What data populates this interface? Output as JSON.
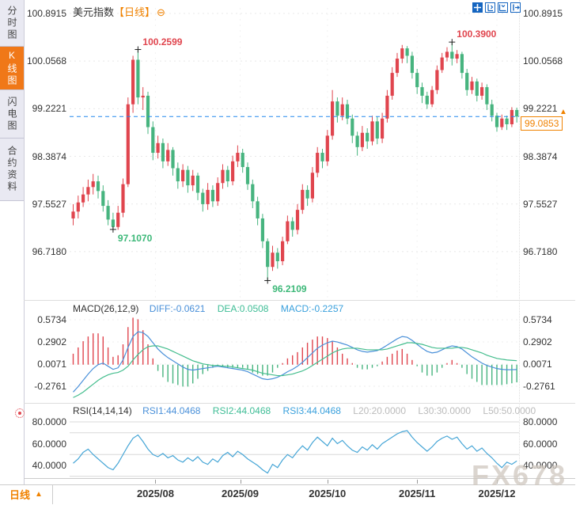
{
  "header": {
    "symbol": "美元指数",
    "period_tag": "【日线】",
    "collapse_icon": "⊖"
  },
  "sidebar": {
    "items": [
      {
        "label": "分时图",
        "name": "timeshare-chart",
        "active": false
      },
      {
        "label": "K线图",
        "name": "kline-chart",
        "active": true
      },
      {
        "label": "闪电图",
        "name": "lightning-chart",
        "active": false
      },
      {
        "label": "合约资料",
        "name": "contract-info",
        "active": false
      }
    ]
  },
  "toolbar_icons": [
    "crosshair",
    "scale-y-axis",
    "scale-x-axis",
    "exit-chart"
  ],
  "current_price": "99.0853",
  "watermark": "FX678",
  "bottom_bar": {
    "period_label": "日线",
    "arrow": "▲"
  },
  "macd_header": {
    "name": "MACD(26,12,9)",
    "diff": "DIFF:-0.0621",
    "dea": "DEA:0.0508",
    "macd": "MACD:-0.2257"
  },
  "rsi_header": {
    "name": "RSI(14,14,14)",
    "rsi1": "RSI1:44.0468",
    "rsi2": "RSI2:44.0468",
    "rsi3": "RSI3:44.0468",
    "l20": "L20:20.0000",
    "l30": "L30:30.0000",
    "l50": "L50:50.0000"
  },
  "colors": {
    "up": "#e0454e",
    "down": "#47b47f",
    "diff_line": "#4a90d9",
    "dea_line": "#43bd8d",
    "rsi_line": "#45a5d6",
    "accent_orange": "#f08200",
    "price_line": "#2288ee",
    "grid": "#e8e8e8",
    "rsi_grid": "#d8d8d8"
  },
  "chart_data": {
    "type": "candlestick",
    "symbol": "美元指数",
    "period": "日线",
    "main": {
      "axis_labels": [
        "100.8915",
        "100.0568",
        "99.2221",
        "98.3874",
        "97.5527",
        "96.7180"
      ],
      "current_price": 99.0853,
      "key_points": [
        {
          "index": 13,
          "value": 100.2599,
          "kind": "high",
          "label": "100.2599",
          "color": "red"
        },
        {
          "index": 76,
          "value": 100.39,
          "kind": "high",
          "label": "100.3900",
          "color": "red"
        },
        {
          "index": 8,
          "value": 97.107,
          "kind": "low",
          "label": "97.1070",
          "color": "green"
        },
        {
          "index": 39,
          "value": 96.2109,
          "kind": "low",
          "label": "96.2109",
          "color": "green"
        }
      ],
      "candles": [
        [
          97.3,
          97.55,
          97.18,
          97.42
        ],
        [
          97.42,
          97.7,
          97.3,
          97.58
        ],
        [
          97.58,
          97.85,
          97.5,
          97.72
        ],
        [
          97.72,
          97.98,
          97.6,
          97.85
        ],
        [
          97.85,
          98.08,
          97.72,
          97.95
        ],
        [
          97.95,
          98.05,
          97.65,
          97.78
        ],
        [
          97.78,
          97.88,
          97.42,
          97.52
        ],
        [
          97.52,
          97.62,
          97.18,
          97.28
        ],
        [
          97.28,
          97.4,
          97.107,
          97.15
        ],
        [
          97.15,
          97.52,
          97.1,
          97.4
        ],
        [
          97.4,
          98.0,
          97.32,
          97.9
        ],
        [
          97.9,
          99.42,
          97.85,
          99.3
        ],
        [
          99.3,
          100.15,
          99.15,
          100.08
        ],
        [
          100.08,
          100.2599,
          99.3,
          99.42
        ],
        [
          99.42,
          99.6,
          99.2,
          99.45
        ],
        [
          99.45,
          99.52,
          98.78,
          98.9
        ],
        [
          98.9,
          99.0,
          98.32,
          98.45
        ],
        [
          98.45,
          98.75,
          98.35,
          98.62
        ],
        [
          98.62,
          98.7,
          98.18,
          98.3
        ],
        [
          98.3,
          98.62,
          98.22,
          98.5
        ],
        [
          98.5,
          98.55,
          98.05,
          98.18
        ],
        [
          98.18,
          98.28,
          97.82,
          97.95
        ],
        [
          97.95,
          98.25,
          97.85,
          98.15
        ],
        [
          98.15,
          98.22,
          97.75,
          97.88
        ],
        [
          97.88,
          98.15,
          97.78,
          98.05
        ],
        [
          98.05,
          98.1,
          97.62,
          97.75
        ],
        [
          97.75,
          97.82,
          97.42,
          97.55
        ],
        [
          97.55,
          97.92,
          97.45,
          97.8
        ],
        [
          97.8,
          97.88,
          97.5,
          97.6
        ],
        [
          97.6,
          98.02,
          97.52,
          97.92
        ],
        [
          97.92,
          98.25,
          97.82,
          98.15
        ],
        [
          98.15,
          98.22,
          97.85,
          97.95
        ],
        [
          97.95,
          98.4,
          97.88,
          98.3
        ],
        [
          98.3,
          98.58,
          98.2,
          98.45
        ],
        [
          98.45,
          98.52,
          98.1,
          98.2
        ],
        [
          98.2,
          98.28,
          97.8,
          97.9
        ],
        [
          97.9,
          97.98,
          97.48,
          97.6
        ],
        [
          97.6,
          97.68,
          97.18,
          97.3
        ],
        [
          97.3,
          97.38,
          96.78,
          96.9
        ],
        [
          96.9,
          96.95,
          96.2109,
          96.45
        ],
        [
          96.45,
          96.82,
          96.38,
          96.7
        ],
        [
          96.7,
          96.78,
          96.42,
          96.55
        ],
        [
          96.55,
          96.98,
          96.48,
          96.9
        ],
        [
          96.9,
          97.35,
          96.85,
          97.25
        ],
        [
          97.25,
          97.32,
          96.98,
          97.1
        ],
        [
          97.1,
          97.55,
          97.02,
          97.45
        ],
        [
          97.45,
          97.9,
          97.38,
          97.8
        ],
        [
          97.8,
          97.88,
          97.52,
          97.65
        ],
        [
          97.65,
          98.2,
          97.58,
          98.1
        ],
        [
          98.1,
          98.55,
          98.02,
          98.45
        ],
        [
          98.45,
          98.52,
          98.18,
          98.3
        ],
        [
          98.3,
          98.85,
          98.22,
          98.75
        ],
        [
          98.75,
          99.55,
          98.68,
          99.35
        ],
        [
          99.35,
          99.42,
          98.98,
          99.1
        ],
        [
          99.1,
          99.42,
          99.02,
          99.3
        ],
        [
          99.3,
          99.38,
          98.95,
          99.05
        ],
        [
          99.05,
          99.12,
          98.62,
          98.75
        ],
        [
          98.75,
          98.82,
          98.4,
          98.55
        ],
        [
          98.55,
          98.92,
          98.48,
          98.8
        ],
        [
          98.8,
          98.88,
          98.52,
          98.65
        ],
        [
          98.65,
          99.1,
          98.58,
          99.0
        ],
        [
          99.0,
          99.08,
          98.6,
          98.7
        ],
        [
          98.7,
          99.15,
          98.62,
          99.05
        ],
        [
          99.05,
          99.55,
          98.98,
          99.45
        ],
        [
          99.45,
          99.95,
          99.38,
          99.85
        ],
        [
          99.85,
          100.2,
          99.78,
          100.1
        ],
        [
          100.1,
          100.34,
          100.02,
          100.28
        ],
        [
          100.28,
          100.32,
          100.02,
          100.15
        ],
        [
          100.15,
          100.22,
          99.75,
          99.85
        ],
        [
          99.85,
          99.92,
          99.48,
          99.6
        ],
        [
          99.6,
          99.68,
          99.32,
          99.45
        ],
        [
          99.45,
          99.52,
          99.22,
          99.3
        ],
        [
          99.3,
          99.62,
          99.25,
          99.55
        ],
        [
          99.55,
          99.98,
          99.48,
          99.9
        ],
        [
          99.9,
          100.2,
          99.85,
          100.12
        ],
        [
          100.12,
          100.3,
          100.05,
          100.22
        ],
        [
          100.22,
          100.39,
          99.98,
          100.1
        ],
        [
          100.1,
          100.25,
          100.02,
          100.18
        ],
        [
          100.18,
          100.22,
          99.75,
          99.85
        ],
        [
          99.85,
          99.92,
          99.45,
          99.55
        ],
        [
          99.55,
          99.78,
          99.48,
          99.7
        ],
        [
          99.7,
          99.75,
          99.35,
          99.45
        ],
        [
          99.45,
          99.68,
          99.38,
          99.6
        ],
        [
          99.6,
          99.65,
          99.2,
          99.3
        ],
        [
          99.3,
          99.38,
          99.0,
          99.1
        ],
        [
          99.1,
          99.15,
          98.82,
          98.9
        ],
        [
          98.9,
          99.12,
          98.85,
          99.05
        ],
        [
          99.05,
          99.1,
          98.85,
          98.95
        ],
        [
          98.95,
          99.25,
          98.9,
          99.2
        ],
        [
          99.2,
          99.24,
          98.98,
          99.0853
        ]
      ]
    },
    "macd": {
      "axis_labels": [
        "0.5734",
        "0.2902",
        "0.0071",
        "-0.2761"
      ],
      "bar_formula": "2*(diff-dea)",
      "diff": [
        -0.35,
        -0.28,
        -0.2,
        -0.12,
        -0.05,
        0.0,
        0.02,
        -0.02,
        -0.06,
        -0.04,
        0.06,
        0.22,
        0.36,
        0.42,
        0.41,
        0.36,
        0.28,
        0.2,
        0.14,
        0.09,
        0.05,
        0.01,
        -0.03,
        -0.06,
        -0.07,
        -0.06,
        -0.05,
        -0.04,
        -0.03,
        -0.02,
        -0.03,
        -0.04,
        -0.05,
        -0.06,
        -0.07,
        -0.09,
        -0.12,
        -0.15,
        -0.18,
        -0.19,
        -0.18,
        -0.16,
        -0.13,
        -0.09,
        -0.06,
        -0.02,
        0.03,
        0.09,
        0.15,
        0.21,
        0.25,
        0.28,
        0.3,
        0.29,
        0.27,
        0.25,
        0.22,
        0.19,
        0.17,
        0.16,
        0.17,
        0.18,
        0.21,
        0.25,
        0.29,
        0.33,
        0.36,
        0.35,
        0.31,
        0.26,
        0.21,
        0.17,
        0.15,
        0.16,
        0.19,
        0.22,
        0.24,
        0.23,
        0.2,
        0.15,
        0.1,
        0.06,
        0.02,
        -0.01,
        -0.03,
        -0.05,
        -0.06,
        -0.065,
        -0.064,
        -0.0621
      ],
      "dea": [
        -0.42,
        -0.39,
        -0.35,
        -0.3,
        -0.25,
        -0.2,
        -0.16,
        -0.13,
        -0.11,
        -0.1,
        -0.07,
        -0.02,
        0.06,
        0.13,
        0.19,
        0.23,
        0.24,
        0.24,
        0.22,
        0.2,
        0.17,
        0.14,
        0.11,
        0.08,
        0.05,
        0.03,
        0.01,
        0.0,
        -0.01,
        -0.01,
        -0.02,
        -0.02,
        -0.03,
        -0.04,
        -0.05,
        -0.06,
        -0.07,
        -0.09,
        -0.11,
        -0.12,
        -0.13,
        -0.14,
        -0.14,
        -0.13,
        -0.12,
        -0.1,
        -0.08,
        -0.05,
        -0.01,
        0.03,
        0.07,
        0.11,
        0.15,
        0.18,
        0.2,
        0.21,
        0.21,
        0.21,
        0.2,
        0.19,
        0.19,
        0.19,
        0.19,
        0.2,
        0.22,
        0.24,
        0.26,
        0.28,
        0.28,
        0.27,
        0.26,
        0.24,
        0.22,
        0.21,
        0.21,
        0.21,
        0.21,
        0.22,
        0.22,
        0.21,
        0.19,
        0.17,
        0.15,
        0.12,
        0.1,
        0.08,
        0.07,
        0.06,
        0.055,
        0.0508
      ]
    },
    "rsi": {
      "axis_labels": [
        "80.0000",
        "60.0000",
        "40.0000"
      ],
      "gridlines": [
        80,
        70,
        50,
        30
      ],
      "values": [
        42,
        46,
        52,
        55,
        50,
        46,
        42,
        38,
        36,
        42,
        50,
        58,
        65,
        68,
        62,
        55,
        50,
        48,
        51,
        47,
        49,
        45,
        43,
        47,
        44,
        48,
        43,
        41,
        46,
        43,
        49,
        52,
        48,
        53,
        50,
        46,
        43,
        40,
        36,
        33,
        41,
        38,
        45,
        50,
        47,
        53,
        58,
        54,
        61,
        66,
        62,
        58,
        65,
        60,
        63,
        58,
        54,
        52,
        57,
        54,
        59,
        55,
        60,
        63,
        66,
        69,
        71,
        72,
        66,
        61,
        57,
        53,
        57,
        62,
        65,
        67,
        64,
        66,
        60,
        55,
        58,
        53,
        56,
        51,
        47,
        42,
        38,
        43,
        41,
        44.0468
      ]
    },
    "x_ticks": [
      {
        "label": "2025/08",
        "index": 16.5
      },
      {
        "label": "2025/09",
        "index": 33.5
      },
      {
        "label": "2025/10",
        "index": 51
      },
      {
        "label": "2025/11",
        "index": 69
      },
      {
        "label": "2025/12",
        "index": 85
      }
    ]
  }
}
